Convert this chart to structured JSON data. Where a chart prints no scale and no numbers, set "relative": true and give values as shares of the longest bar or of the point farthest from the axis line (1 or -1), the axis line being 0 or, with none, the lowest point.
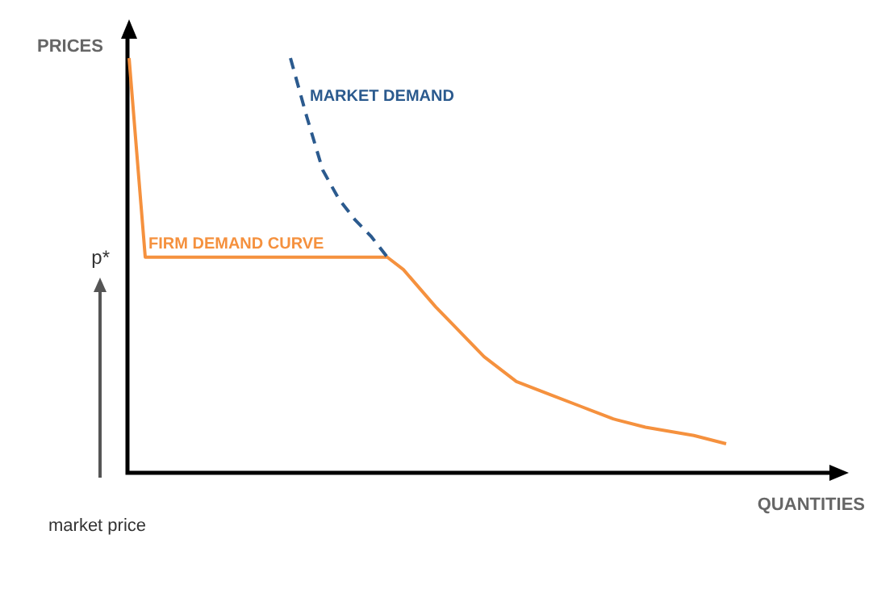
{
  "chart_data": {
    "type": "line",
    "relative": true,
    "ylabel": "PRICES",
    "xlabel": "QUANTITIES",
    "tick_labels": false,
    "grid": false,
    "legend": false,
    "marker": "none",
    "categories": [
      null,
      null,
      null,
      null,
      null,
      null,
      null,
      null,
      null,
      null,
      null,
      null,
      null,
      null,
      null,
      null,
      null,
      null,
      null,
      null,
      null,
      null,
      null,
      null,
      null,
      null,
      null,
      null,
      null,
      null,
      null,
      null,
      null,
      null,
      null,
      null,
      null,
      null,
      null,
      null,
      null,
      null,
      null,
      null,
      null
    ],
    "annotations": [
      "p*",
      "market price"
    ],
    "series": [
      {
        "name": "MARKET DEMAND",
        "color": "#2b5a8e",
        "line_style": "dashed",
        "values": [
          null,
          null,
          null,
          null,
          null,
          null,
          null,
          null,
          null,
          null,
          1,
          0.86,
          0.73,
          0.66,
          0.61,
          0.57,
          0.52,
          null,
          null,
          null,
          null,
          null,
          null,
          null,
          null,
          null,
          null,
          null,
          null,
          null,
          null,
          null,
          null,
          null,
          null,
          null,
          null,
          null,
          null,
          null,
          null,
          null,
          null,
          null,
          null
        ]
      },
      {
        "name": "FIRM DEMAND CURVE",
        "color": "#f5913e",
        "line_style": "solid",
        "values": [
          1,
          0.52,
          null,
          null,
          null,
          null,
          null,
          null,
          null,
          null,
          null,
          null,
          null,
          null,
          null,
          null,
          0.52,
          0.49,
          null,
          0.4,
          0.36,
          null,
          0.28,
          null,
          0.22,
          null,
          0.19,
          null,
          0.16,
          null,
          0.13,
          null,
          0.11,
          null,
          null,
          0.09,
          null,
          0.07,
          null,
          null,
          null,
          null,
          null,
          null,
          null
        ]
      }
    ]
  }
}
